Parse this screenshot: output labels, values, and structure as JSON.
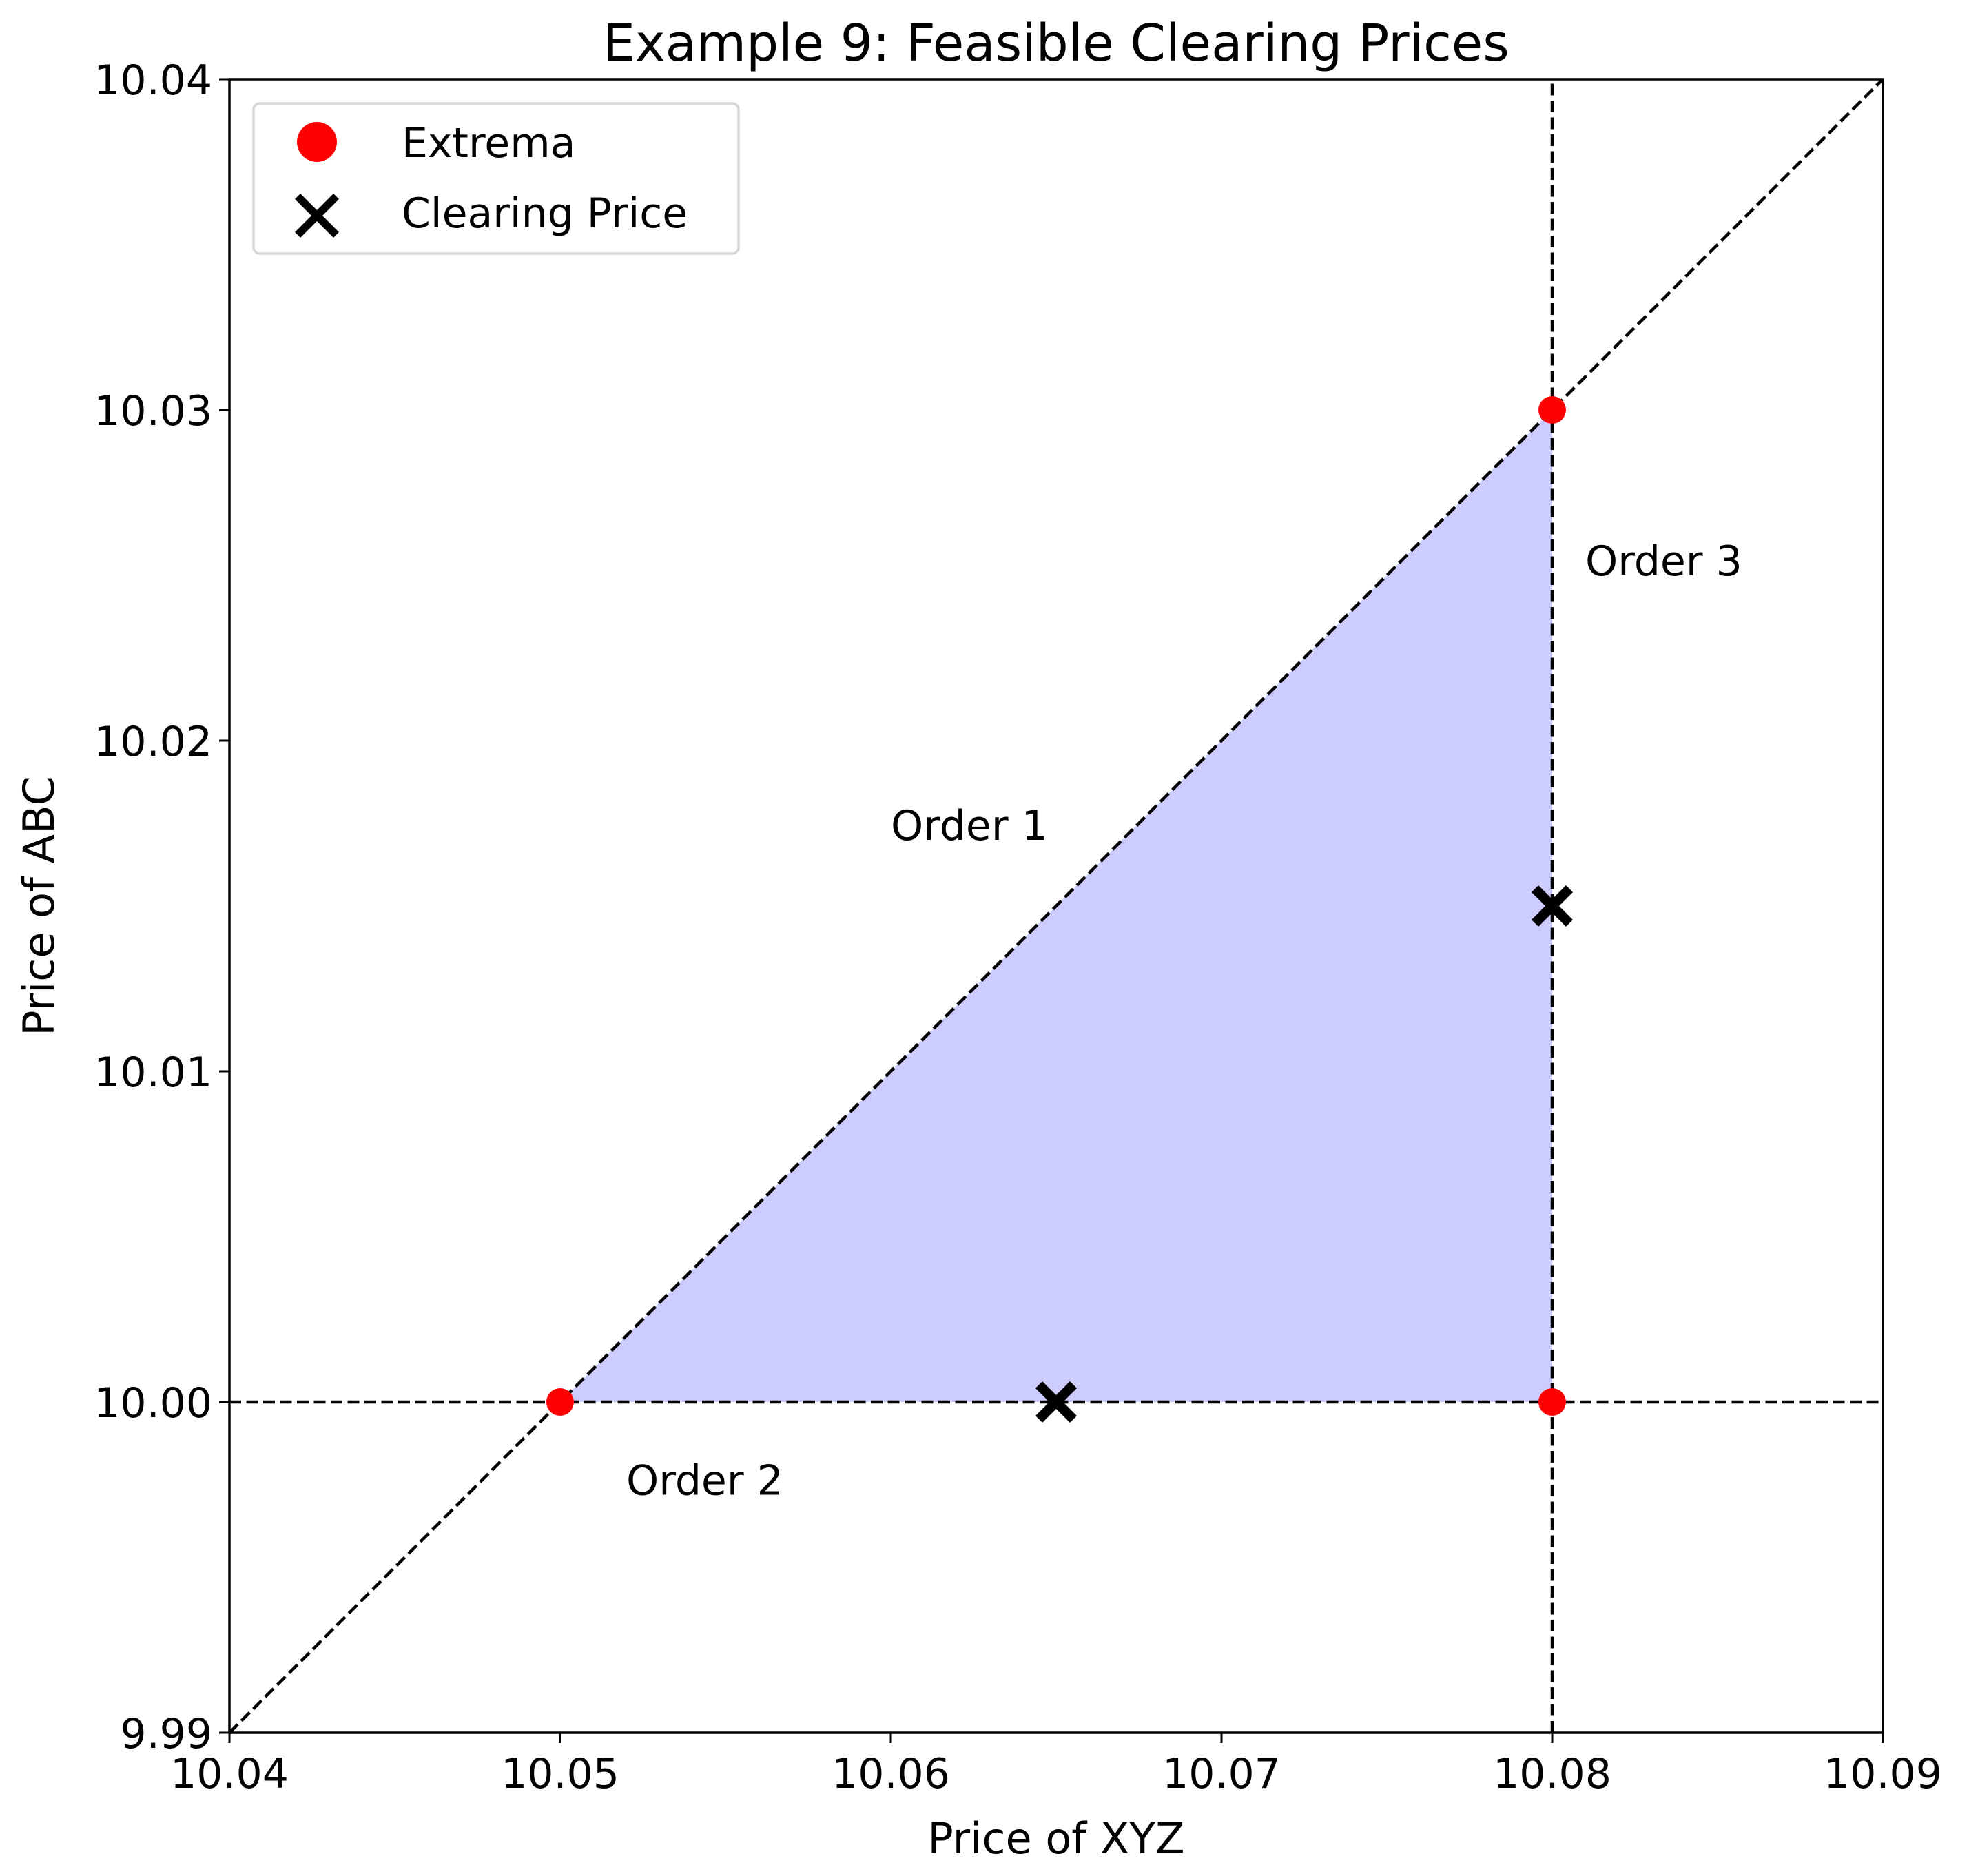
{
  "chart_data": {
    "type": "scatter",
    "title": "Example 9: Feasible Clearing Prices",
    "xlabel": "Price of XYZ",
    "ylabel": "Price of ABC",
    "xlim": [
      10.04,
      10.09
    ],
    "ylim": [
      9.99,
      10.04
    ],
    "xticks": [
      "10.04",
      "10.05",
      "10.06",
      "10.07",
      "10.08",
      "10.09"
    ],
    "yticks": [
      "9.99",
      "10.00",
      "10.01",
      "10.02",
      "10.03",
      "10.04"
    ],
    "grid": false,
    "legend_placement": "top-left",
    "feasible_region": {
      "vertices": [
        [
          10.05,
          10.0
        ],
        [
          10.08,
          10.03
        ],
        [
          10.08,
          10.0
        ]
      ],
      "color": "#ccccff"
    },
    "lines": [
      {
        "label": "Order 1",
        "points": [
          [
            10.04,
            9.99
          ],
          [
            10.09,
            10.04
          ]
        ],
        "style": "dashed",
        "color": "#000000",
        "label_at": [
          10.06,
          10.017
        ]
      },
      {
        "label": "Order 2",
        "points": [
          [
            10.04,
            10.0
          ],
          [
            10.09,
            10.0
          ]
        ],
        "style": "dashed",
        "color": "#000000",
        "label_at": [
          10.052,
          9.9972
        ]
      },
      {
        "label": "Order 3",
        "points": [
          [
            10.08,
            9.99
          ],
          [
            10.08,
            10.04
          ]
        ],
        "style": "dashed",
        "color": "#000000",
        "label_at": [
          10.081,
          10.025
        ]
      }
    ],
    "series": [
      {
        "name": "Extrema",
        "marker": "circle",
        "color": "#ff0000",
        "points": [
          [
            10.05,
            10.0
          ],
          [
            10.08,
            10.03
          ],
          [
            10.08,
            10.0
          ]
        ]
      },
      {
        "name": "Clearing Price",
        "marker": "x",
        "color": "#000000",
        "points": [
          [
            10.065,
            10.0
          ],
          [
            10.08,
            10.015
          ]
        ]
      }
    ]
  }
}
